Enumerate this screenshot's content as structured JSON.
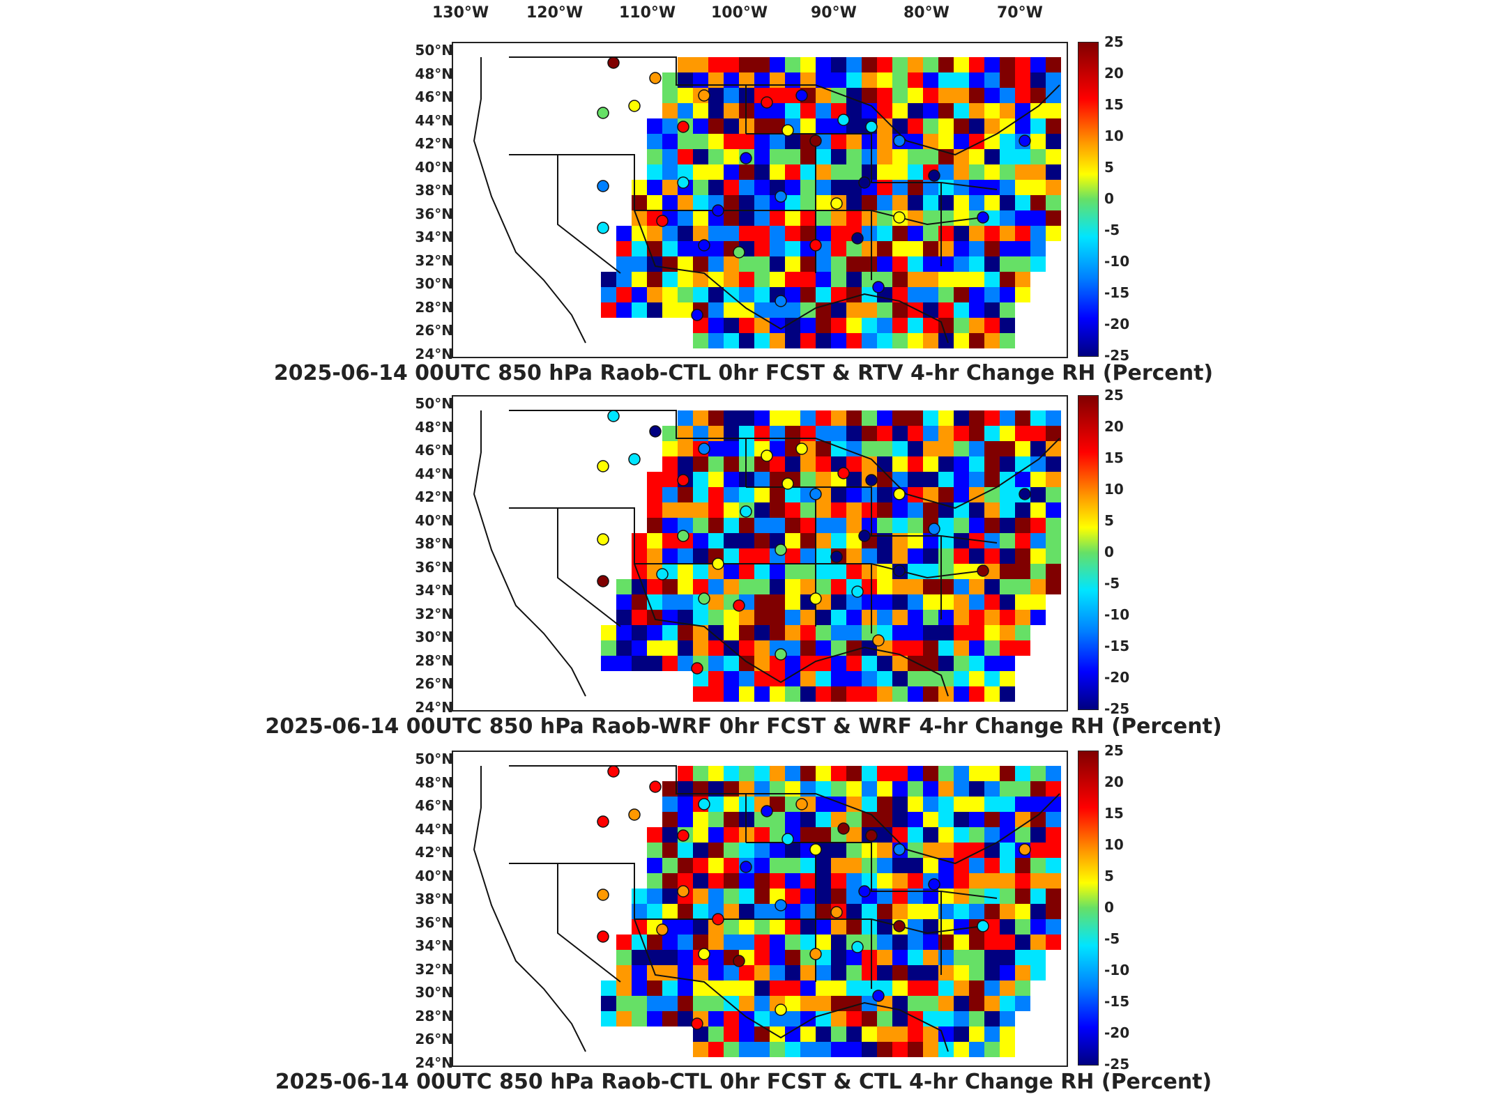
{
  "longitude_labels": [
    "130°W",
    "120°W",
    "110°W",
    "100°W",
    "90°W",
    "80°W",
    "70°W"
  ],
  "latitude_labels": [
    "50°N",
    "48°N",
    "46°N",
    "44°N",
    "42°N",
    "40°N",
    "38°N",
    "36°N",
    "34°N",
    "32°N",
    "30°N",
    "28°N",
    "26°N",
    "24°N"
  ],
  "colorbar_ticks": [
    "25",
    "20",
    "15",
    "10",
    "5",
    "0",
    "-5",
    "-10",
    "-15",
    "-20",
    "-25"
  ],
  "colorbar_colors": [
    "#800000",
    "#ff0000",
    "#ff9900",
    "#ffff00",
    "#66e066",
    "#00e5ff",
    "#0080ff",
    "#0000ff",
    "#000080"
  ],
  "panels": [
    {
      "title": "2025-06-14 00UTC 850 hPa Raob-CTL 0hr FCST & RTV 4-hr Change RH (Percent)"
    },
    {
      "title": "2025-06-14 00UTC 850 hPa Raob-WRF 0hr FCST & WRF 4-hr Change RH (Percent)"
    },
    {
      "title": "2025-06-14 00UTC 850 hPa Raob-CTL 0hr FCST & CTL 4-hr Change RH (Percent)"
    }
  ]
}
